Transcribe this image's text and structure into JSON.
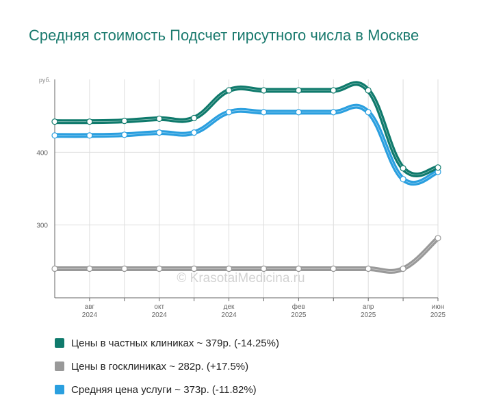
{
  "title": "Средняя стоимость Подсчет гирсутного числа в Москве",
  "watermark": "© KrasotaiMedicina.ru",
  "colors": {
    "private": "#0f7a6c",
    "public": "#999999",
    "average": "#2a9fdf",
    "grid": "#dddddd",
    "axis": "#666666"
  },
  "legend": [
    {
      "label": "Цены в частных клиниках ~ 379р. (-14.25%)",
      "color": "#0f7a6c"
    },
    {
      "label": "Цены в госклиниках ~ 282р. (+17.5%)",
      "color": "#999999"
    },
    {
      "label": "Средняя цена услуги ~ 373р. (-11.82%)",
      "color": "#2a9fdf"
    }
  ],
  "chart_data": {
    "type": "line",
    "title": "Средняя стоимость Подсчет гирсутного числа в Москве",
    "ylabel": "руб.",
    "ylim": [
      200,
      500
    ],
    "yticks": [
      300,
      400
    ],
    "x_tick_labels": [
      {
        "index": 1,
        "month": "авг",
        "year": "2024"
      },
      {
        "index": 3,
        "month": "окт",
        "year": "2024"
      },
      {
        "index": 5,
        "month": "дек",
        "year": "2024"
      },
      {
        "index": 7,
        "month": "фев",
        "year": "2025"
      },
      {
        "index": 9,
        "month": "апр",
        "year": "2025"
      },
      {
        "index": 11,
        "month": "июн",
        "year": "2025"
      }
    ],
    "x": [
      "2024-07",
      "2024-08",
      "2024-09",
      "2024-10",
      "2024-11",
      "2024-12",
      "2025-01",
      "2025-02",
      "2025-03",
      "2025-04",
      "2025-05",
      "2025-06"
    ],
    "grid": true,
    "legend_position": "bottom",
    "series": [
      {
        "name": "Цены в частных клиниках ~ 379р. (-14.25%)",
        "color": "#0f7a6c",
        "values": [
          442,
          442,
          443,
          446,
          447,
          485,
          485,
          485,
          485,
          485,
          378,
          379
        ]
      },
      {
        "name": "Цены в госклиниках ~ 282р. (+17.5%)",
        "color": "#999999",
        "values": [
          240,
          240,
          240,
          240,
          240,
          240,
          240,
          240,
          240,
          240,
          240,
          282
        ]
      },
      {
        "name": "Средняя цена услуги ~ 373р. (-11.82%)",
        "color": "#2a9fdf",
        "values": [
          423,
          423,
          424,
          427,
          427,
          455,
          455,
          455,
          455,
          455,
          363,
          373
        ]
      }
    ]
  }
}
